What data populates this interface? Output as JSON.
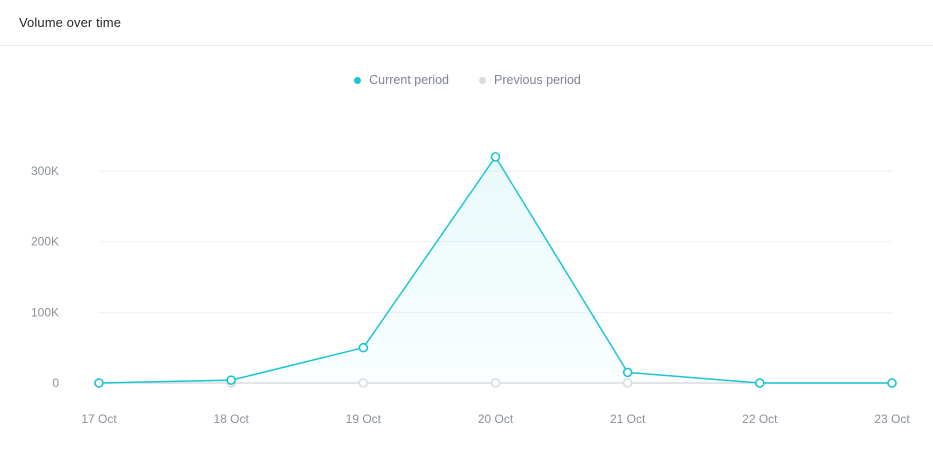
{
  "panel": {
    "title": "Volume over time"
  },
  "legend": [
    {
      "label": "Current period",
      "color": "#19c6cf"
    },
    {
      "label": "Previous period",
      "color": "#d9dcdf"
    }
  ],
  "chart_data": {
    "type": "line",
    "x": [
      "17 Oct",
      "18 Oct",
      "19 Oct",
      "20 Oct",
      "21 Oct",
      "22 Oct",
      "23 Oct"
    ],
    "series": [
      {
        "name": "Current period",
        "color": "#19c6cf",
        "values": [
          0,
          4000,
          50000,
          320000,
          15000,
          0,
          0
        ],
        "area_fill": true
      },
      {
        "name": "Previous period",
        "color": "#d9dcdf",
        "values": [
          0,
          0,
          0,
          0,
          0,
          0,
          0
        ]
      }
    ],
    "y_ticks": [
      {
        "value": 0,
        "label": "0"
      },
      {
        "value": 100000,
        "label": "100K"
      },
      {
        "value": 200000,
        "label": "200K"
      },
      {
        "value": 300000,
        "label": "300K"
      }
    ],
    "ylim": [
      0,
      300000
    ],
    "grid": true,
    "legend_position": "top-center",
    "title": "",
    "xlabel": "",
    "ylabel": ""
  }
}
